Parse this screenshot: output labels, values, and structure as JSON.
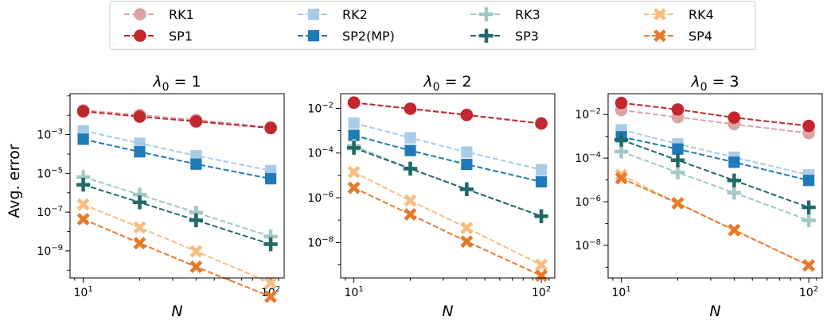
{
  "legend": {
    "placement": "top-center",
    "entries": [
      {
        "key": "RK1",
        "label": "RK1",
        "color": "#dca3a6",
        "marker": "circle"
      },
      {
        "key": "SP1",
        "label": "SP1",
        "color": "#c1272d",
        "marker": "circle"
      },
      {
        "key": "RK2",
        "label": "RK2",
        "color": "#a9cbe6",
        "marker": "square"
      },
      {
        "key": "SP2",
        "label": "SP2(MP)",
        "color": "#1f7ab8",
        "marker": "square"
      },
      {
        "key": "RK3",
        "label": "RK3",
        "color": "#a1c7c6",
        "marker": "plus"
      },
      {
        "key": "SP3",
        "label": "SP3",
        "color": "#21696a",
        "marker": "plus"
      },
      {
        "key": "RK4",
        "label": "RK4",
        "color": "#f9bd80",
        "marker": "x"
      },
      {
        "key": "SP4",
        "label": "SP4",
        "color": "#e8792a",
        "marker": "x"
      }
    ]
  },
  "chart_data": [
    {
      "type": "line",
      "title": "λ0 = 1",
      "xlabel": "N",
      "ylabel": "Avg. error",
      "x_scale": "log",
      "y_scale": "log",
      "xlim": [
        8.5,
        118
      ],
      "ylim": [
        4e-11,
        0.13
      ],
      "x_ticks": [
        {
          "value": 10,
          "base": "10",
          "exp": "1"
        },
        {
          "value": 100,
          "base": "10",
          "exp": "2"
        }
      ],
      "y_ticks": [
        {
          "value": 0.001,
          "base": "10",
          "exp": "−3"
        },
        {
          "value": 1e-05,
          "base": "10",
          "exp": "−5"
        },
        {
          "value": 1e-07,
          "base": "10",
          "exp": "−7"
        },
        {
          "value": 1e-09,
          "base": "10",
          "exp": "−9"
        }
      ],
      "x": [
        10,
        20,
        40,
        100
      ],
      "series": [
        {
          "key": "RK1",
          "values": [
            0.018,
            0.0105,
            0.0058,
            0.0024
          ]
        },
        {
          "key": "SP1",
          "values": [
            0.016,
            0.0085,
            0.0048,
            0.0022
          ]
        },
        {
          "key": "RK2",
          "values": [
            0.0016,
            0.00036,
            8.2e-05,
            1.4e-05
          ]
        },
        {
          "key": "SP2",
          "values": [
            0.00058,
            0.00013,
            3e-05,
            5.3e-06
          ]
        },
        {
          "key": "RK3",
          "values": [
            6.5e-06,
            8e-07,
            9.5e-08,
            5.5e-09
          ]
        },
        {
          "key": "SP3",
          "values": [
            2.6e-06,
            3.2e-07,
            3.8e-08,
            2.2e-09
          ]
        },
        {
          "key": "RK4",
          "values": [
            2.5e-07,
            1.6e-08,
            9.5e-10,
            2.2e-11
          ]
        },
        {
          "key": "SP4",
          "values": [
            4.3e-08,
            2.5e-09,
            1.5e-10,
            4.3e-12
          ]
        }
      ]
    },
    {
      "type": "line",
      "title": "λ0 = 2",
      "xlabel": "N",
      "ylabel": "",
      "x_scale": "log",
      "y_scale": "log",
      "xlim": [
        8.5,
        118
      ],
      "ylim": [
        2.6e-10,
        0.045
      ],
      "x_ticks": [
        {
          "value": 10,
          "base": "10",
          "exp": "1"
        },
        {
          "value": 100,
          "base": "10",
          "exp": "2"
        }
      ],
      "y_ticks": [
        {
          "value": 0.01,
          "base": "10",
          "exp": "−2"
        },
        {
          "value": 0.0001,
          "base": "10",
          "exp": "−4"
        },
        {
          "value": 1e-06,
          "base": "10",
          "exp": "−6"
        },
        {
          "value": 1e-08,
          "base": "10",
          "exp": "−8"
        }
      ],
      "x": [
        10,
        20,
        40,
        100
      ],
      "series": [
        {
          "key": "RK1",
          "values": [
            0.018,
            0.0098,
            0.0052,
            0.0021
          ]
        },
        {
          "key": "SP1",
          "values": [
            0.018,
            0.0095,
            0.005,
            0.0021
          ]
        },
        {
          "key": "RK2",
          "values": [
            0.0022,
            0.00048,
            0.00011,
            1.8e-05
          ]
        },
        {
          "key": "SP2",
          "values": [
            0.00062,
            0.00013,
            3.1e-05,
            5.2e-06
          ]
        },
        {
          "key": "RK3",
          "values": [
            0.00021,
            2e-05,
            2.4e-06,
            1.5e-07
          ]
        },
        {
          "key": "SP3",
          "values": [
            0.00017,
            2e-05,
            2.4e-06,
            1.5e-07
          ]
        },
        {
          "key": "RK4",
          "values": [
            1.4e-05,
            7.5e-07,
            4.5e-08,
            1e-09
          ]
        },
        {
          "key": "SP4",
          "values": [
            2.8e-06,
            1.8e-07,
            1.1e-08,
            3.3e-10
          ]
        }
      ]
    },
    {
      "type": "line",
      "title": "λ0 = 3",
      "xlabel": "N",
      "ylabel": "",
      "x_scale": "log",
      "y_scale": "log",
      "xlim": [
        8.5,
        118
      ],
      "ylim": [
        3.2e-10,
        0.09
      ],
      "x_ticks": [
        {
          "value": 10,
          "base": "10",
          "exp": "1"
        },
        {
          "value": 100,
          "base": "10",
          "exp": "2"
        }
      ],
      "y_ticks": [
        {
          "value": 0.01,
          "base": "10",
          "exp": "−2"
        },
        {
          "value": 0.0001,
          "base": "10",
          "exp": "−4"
        },
        {
          "value": 1e-06,
          "base": "10",
          "exp": "−6"
        },
        {
          "value": 1e-08,
          "base": "10",
          "exp": "−8"
        }
      ],
      "x": [
        10,
        20,
        40,
        100
      ],
      "series": [
        {
          "key": "RK1",
          "values": [
            0.016,
            0.0075,
            0.0036,
            0.0014
          ]
        },
        {
          "key": "SP1",
          "values": [
            0.034,
            0.017,
            0.0072,
            0.003
          ]
        },
        {
          "key": "RK2",
          "values": [
            0.002,
            0.00045,
            0.00011,
            1.7e-05
          ]
        },
        {
          "key": "SP2",
          "values": [
            0.00095,
            0.00026,
            6.5e-05,
            9.5e-06
          ]
        },
        {
          "key": "RK3",
          "values": [
            0.0002,
            2.2e-05,
            2.6e-06,
            1.4e-07
          ]
        },
        {
          "key": "SP3",
          "values": [
            0.00069,
            8e-05,
            9.5e-06,
            5.5e-07
          ]
        },
        {
          "key": "RK4",
          "values": [
            1.7e-05,
            8.5e-07,
            5e-08,
            1.2e-09
          ]
        },
        {
          "key": "SP4",
          "values": [
            1.2e-05,
            8.5e-07,
            5e-08,
            1.2e-09
          ]
        }
      ]
    }
  ]
}
